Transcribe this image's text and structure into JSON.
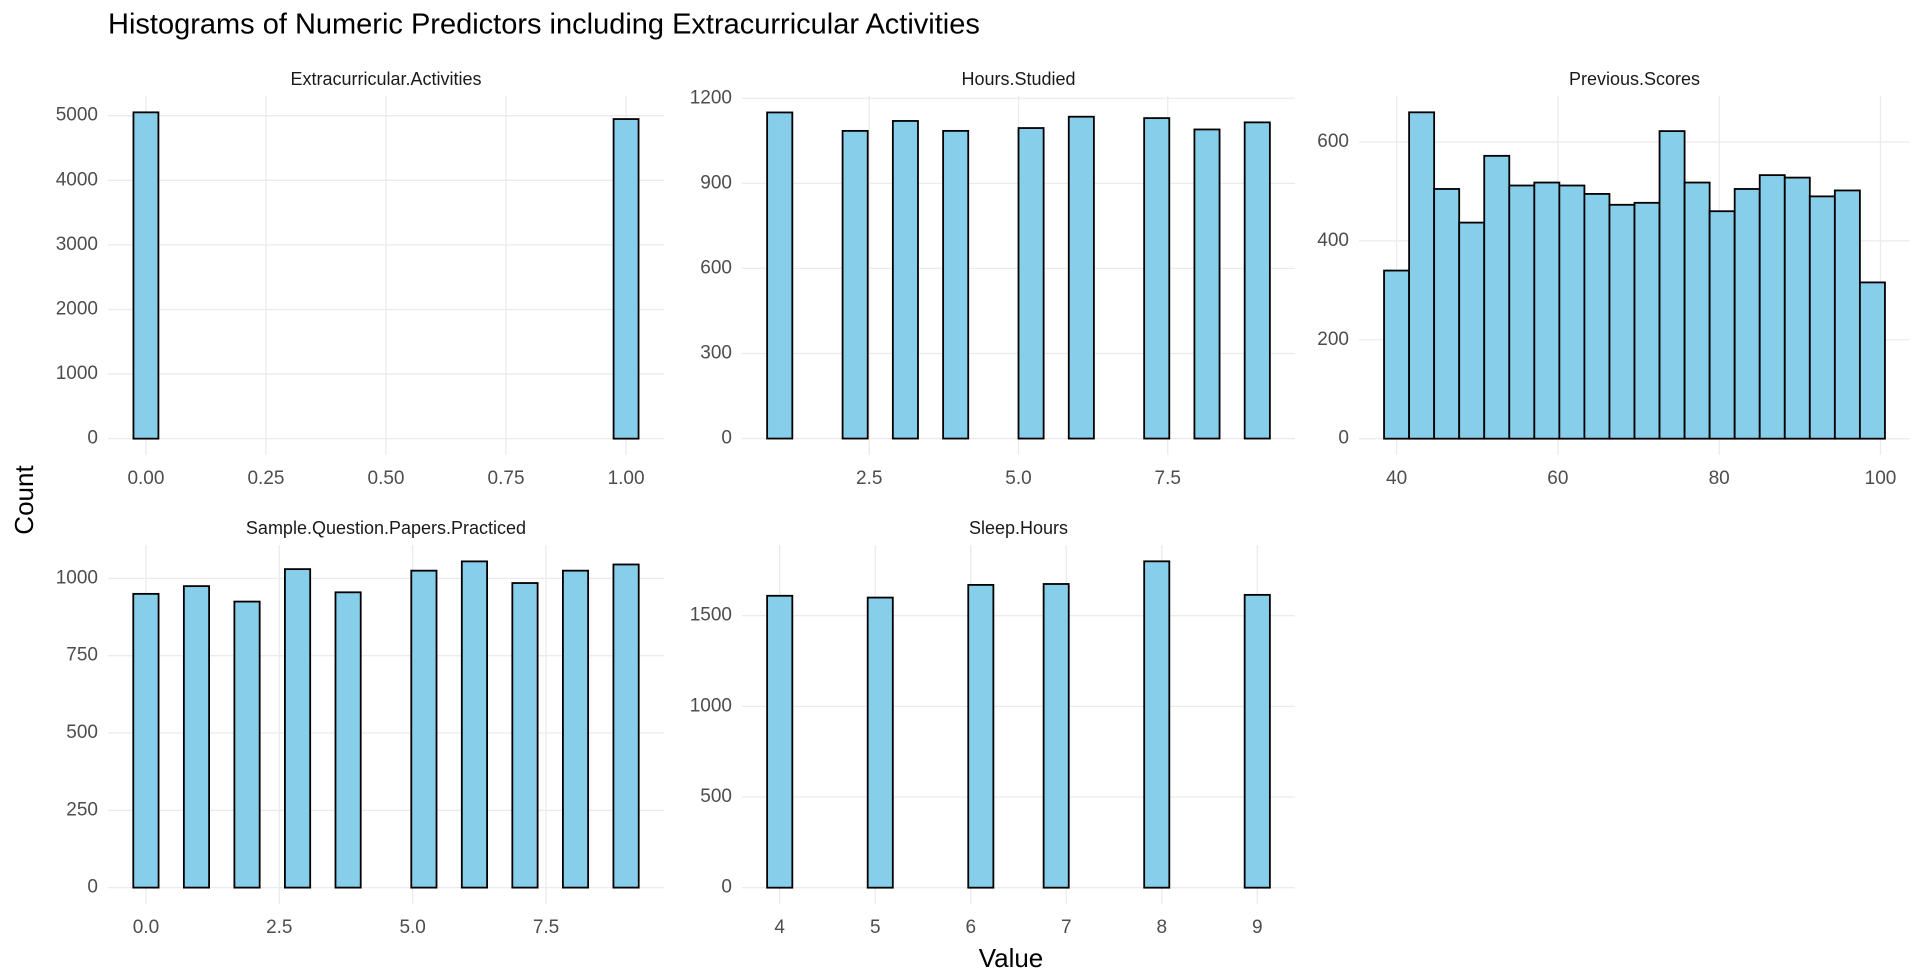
{
  "title": "Histograms of Numeric Predictors including Extracurricular Activities",
  "x_label": "Value",
  "y_label": "Count",
  "chart_data": [
    {
      "type": "histogram",
      "title": "Extracurricular.Activities",
      "color": "#87ceeb",
      "edgecolor": "#000000",
      "grid": true,
      "bins": [
        -0.026,
        0.026,
        0.079,
        0.132,
        0.184,
        0.237,
        0.289,
        0.342,
        0.395,
        0.447,
        0.5,
        0.553,
        0.605,
        0.658,
        0.711,
        0.763,
        0.816,
        0.868,
        0.921,
        0.974,
        1.026
      ],
      "values": [
        5052,
        0,
        0,
        0,
        0,
        0,
        0,
        0,
        0,
        0,
        0,
        0,
        0,
        0,
        0,
        0,
        0,
        0,
        0,
        4948
      ],
      "xlim": [
        -0.079,
        1.079
      ],
      "xticks": [
        {
          "value": 0,
          "label": "0.00"
        },
        {
          "value": 0.25,
          "label": "0.25"
        },
        {
          "value": 0.5,
          "label": "0.50"
        },
        {
          "value": 0.75,
          "label": "0.75"
        },
        {
          "value": 1,
          "label": "1.00"
        }
      ],
      "ylim": [
        -253,
        5305
      ],
      "yticks": [
        0,
        1000,
        2000,
        3000,
        4000,
        5000
      ]
    },
    {
      "type": "histogram",
      "title": "Hours.Studied",
      "color": "#87ceeb",
      "edgecolor": "#000000",
      "grid": true,
      "bins": [
        0.789,
        1.211,
        1.632,
        2.053,
        2.474,
        2.895,
        3.316,
        3.737,
        4.158,
        4.579,
        5.0,
        5.421,
        5.842,
        6.263,
        6.684,
        7.105,
        7.526,
        7.947,
        8.368,
        8.789,
        9.211
      ],
      "values": [
        1150,
        0,
        0,
        1085,
        0,
        1120,
        0,
        1085,
        0,
        0,
        1095,
        0,
        1135,
        0,
        0,
        1130,
        0,
        1090,
        0,
        1115
      ],
      "xlim": [
        0.368,
        9.632
      ],
      "xticks": [
        2.5,
        {
          "value": 5,
          "label": "5.0"
        },
        7.5
      ],
      "ylim": [
        -58,
        1208
      ],
      "yticks": [
        0,
        300,
        600,
        900,
        1200
      ]
    },
    {
      "type": "histogram",
      "title": "Previous.Scores",
      "color": "#87ceeb",
      "edgecolor": "#000000",
      "grid": true,
      "bins": [
        38.447,
        41.553,
        44.658,
        47.763,
        50.868,
        53.974,
        57.079,
        60.184,
        63.289,
        66.395,
        69.5,
        72.605,
        75.711,
        78.816,
        81.921,
        85.026,
        88.132,
        91.237,
        94.342,
        97.447,
        100.553
      ],
      "values": [
        340,
        660,
        505,
        437,
        572,
        512,
        518,
        512,
        495,
        473,
        477,
        622,
        518,
        460,
        505,
        533,
        528,
        490,
        502,
        316
      ],
      "xlim": [
        35.34,
        103.66
      ],
      "xticks": [
        40,
        60,
        80,
        100
      ],
      "ylim": [
        -33,
        693
      ],
      "yticks": [
        0,
        200,
        400,
        600
      ]
    },
    {
      "type": "histogram",
      "title": "Sample.Question.Papers.Practiced",
      "color": "#87ceeb",
      "edgecolor": "#000000",
      "grid": true,
      "bins": [
        -0.237,
        0.237,
        0.711,
        1.184,
        1.658,
        2.132,
        2.605,
        3.079,
        3.553,
        4.026,
        4.5,
        4.974,
        5.447,
        5.921,
        6.395,
        6.868,
        7.342,
        7.816,
        8.289,
        8.763,
        9.237
      ],
      "values": [
        950,
        0,
        975,
        0,
        925,
        0,
        1030,
        0,
        955,
        0,
        0,
        1025,
        0,
        1055,
        0,
        985,
        0,
        1025,
        0,
        1045
      ],
      "xlim": [
        -0.711,
        9.711
      ],
      "xticks": [
        {
          "value": 0,
          "label": "0.0"
        },
        2.5,
        {
          "value": 5,
          "label": "5.0"
        },
        7.5
      ],
      "ylim": [
        -53,
        1108
      ],
      "yticks": [
        0,
        250,
        500,
        750,
        1000
      ]
    },
    {
      "type": "histogram",
      "title": "Sleep.Hours",
      "color": "#87ceeb",
      "edgecolor": "#000000",
      "grid": true,
      "bins": [
        3.868,
        4.132,
        4.395,
        4.658,
        4.921,
        5.184,
        5.447,
        5.711,
        5.974,
        6.237,
        6.5,
        6.763,
        7.026,
        7.289,
        7.553,
        7.816,
        8.079,
        8.342,
        8.605,
        8.868,
        9.132
      ],
      "values": [
        1610,
        0,
        0,
        0,
        1600,
        0,
        0,
        0,
        1670,
        0,
        0,
        1675,
        0,
        0,
        0,
        1800,
        0,
        0,
        0,
        1615
      ],
      "xlim": [
        3.605,
        9.395
      ],
      "xticks": [
        4,
        5,
        6,
        7,
        8,
        9
      ],
      "ylim": [
        -90,
        1890
      ],
      "yticks": [
        0,
        500,
        1000,
        1500
      ]
    }
  ]
}
